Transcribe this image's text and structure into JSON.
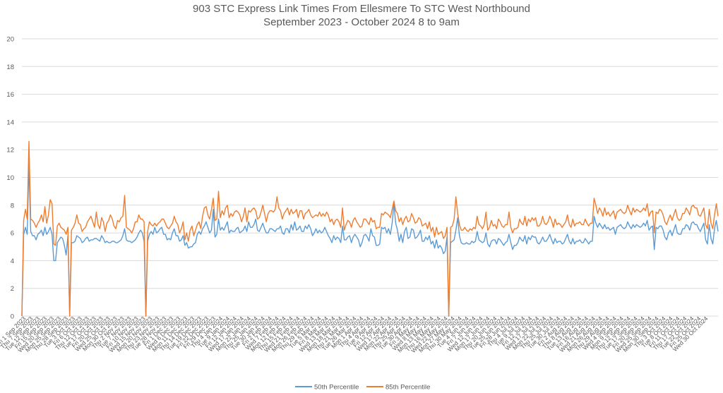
{
  "chart_data": {
    "type": "line",
    "title": "903 STC Express Link Times From Ellesmere To STC West Northbound",
    "subtitle": "September 2023 - October 2024 8 to 9am",
    "xlabel": "",
    "ylabel": "",
    "ylim": [
      0,
      20
    ],
    "y_ticks": [
      0,
      2,
      4,
      6,
      8,
      10,
      12,
      14,
      16,
      18,
      20
    ],
    "grid": true,
    "legend_position": "bottom",
    "x_tick_labels": [
      "Fri 1 Sep 2023",
      "Thu 7 Sep 2023",
      "Tue 12 Sep 2023",
      "Fri 15 Sep 2023",
      "Wed 20 Sep 2023",
      "Mon 25 Sep 2023",
      "Thu 28 Sep 2023",
      "Tue 3 Oct 2023",
      "Fri 6 Oct 2023",
      "Thu 12 Oct 2023",
      "Tue 17 Oct 2023",
      "Fri 20 Oct 2023",
      "Wed 25 Oct 2023",
      "Mon 30 Oct 2023",
      "Thu 2 Nov 2023",
      "Tue 7 Nov 2023",
      "Fri 10 Nov 2023",
      "Wed 15 Nov 2023",
      "Mon 20 Nov 2023",
      "Thu 23 Nov 2023",
      "Tue 28 Nov 2023",
      "Fri 1 Dec 2023",
      "Wed 6 Dec 2023",
      "Mon 11 Dec 2023",
      "Thu 14 Dec 2023",
      "Tue 19 Dec 2023",
      "Fri 22 Dec 2023",
      "Fri 29 Dec 2023",
      "Thu 4 Jan 2024",
      "Tue 9 Jan 2024",
      "Fri 12 Jan 2024",
      "Wed 17 Jan 2024",
      "Mon 22 Jan 2024",
      "Thu 25 Jan 2024",
      "Tue 30 Jan 2024",
      "Fri 2 Feb 2024",
      "Wed 7 Feb 2024",
      "Mon 12 Feb 2024",
      "Thu 15 Feb 2024",
      "Wed 21 Feb 2024",
      "Mon 26 Feb 2024",
      "Thu 29 Feb 2024",
      "Tue 5 Mar 2024",
      "Fri 8 Mar 2024",
      "Wed 13 Mar 2024",
      "Mon 18 Mar 2024",
      "Thu 21 Mar 2024",
      "Tue 26 Mar 2024",
      "Mon 1 Apr 2024",
      "Thu 4 Apr 2024",
      "Tue 9 Apr 2024",
      "Fri 12 Apr 2024",
      "Wed 17 Apr 2024",
      "Mon 22 Apr 2024",
      "Thu 25 Apr 2024",
      "Tue 30 Apr 2024",
      "Fri 3 May 2024",
      "Wed 8 May 2024",
      "Mon 13 May 2024",
      "Thu 16 May 2024",
      "Wed 22 May 2024",
      "Mon 27 May 2024",
      "Thu 30 May 2024",
      "Tue 4 Jun 2024",
      "Fri 7 Jun 2024",
      "Wed 12 Jun 2024",
      "Mon 17 Jun 2024",
      "Thu 20 Jun 2024",
      "Tue 25 Jun 2024",
      "Fri 28 Jun 2024",
      "Thu 4 Jul 2024",
      "Tue 9 Jul 2024",
      "Fri 12 Jul 2024",
      "Wed 17 Jul 2024",
      "Mon 22 Jul 2024",
      "Thu 25 Jul 2024",
      "Tue 30 Jul 2024",
      "Fri 2 Aug 2024",
      "Thu 8 Aug 2024",
      "Tue 13 Aug 2024",
      "Fri 16 Aug 2024",
      "Wed 21 Aug 2024",
      "Mon 26 Aug 2024",
      "Thu 29 Aug 2024",
      "Wed 4 Sep 2024",
      "Mon 9 Sep 2024",
      "Thu 12 Sep 2024",
      "Tue 17 Sep 2024",
      "Fri 20 Sep 2024",
      "Wed 25 Sep 2024",
      "Mon 30 Sep 2024",
      "Thu 3 Oct 2024",
      "Tue 8 Oct 2024",
      "Fri 11 Oct 2024",
      "Thu 17 Oct 2024",
      "Tue 22 Oct 2024",
      "Fri 25 Oct 2024",
      "Wed 30 Oct 2024"
    ],
    "series": [
      {
        "name": "50th Percentile",
        "color": "#5b9bd5",
        "values": [
          0,
          5.9,
          6.4,
          5.9,
          10.9,
          6.1,
          5.8,
          5.8,
          5.5,
          5.9,
          6.0,
          6.2,
          5.8,
          6.4,
          5.9,
          6.1,
          6.4,
          5.9,
          4.0,
          4.0,
          5.3,
          5.5,
          5.7,
          5.6,
          5.1,
          4.4,
          5.8,
          0,
          5.3,
          5.3,
          5.4,
          5.8,
          5.7,
          5.6,
          5.3,
          5.4,
          5.6,
          5.7,
          5.4,
          5.5,
          5.5,
          5.6,
          5.6,
          5.5,
          5.4,
          5.8,
          5.6,
          5.3,
          5.4,
          5.3,
          5.3,
          5.4,
          5.4,
          5.3,
          5.3,
          5.4,
          5.5,
          5.8,
          6.3,
          5.5,
          5.4,
          5.4,
          5.3,
          5.4,
          5.5,
          5.7,
          6.0,
          6.2,
          6.0,
          5.4,
          0,
          5.4,
          5.9,
          6.1,
          5.9,
          6.4,
          6.0,
          6.1,
          6.3,
          6.4,
          5.9,
          5.9,
          5.5,
          5.6,
          5.5,
          6.0,
          6.3,
          5.8,
          5.8,
          5.4,
          5.5,
          5.8,
          5.1,
          5.3,
          4.9,
          5.0,
          5.0,
          5.2,
          5.3,
          5.9,
          6.1,
          5.9,
          6.3,
          6.5,
          6.8,
          6.4,
          6.0,
          6.2,
          7.7,
          5.7,
          5.9,
          7.0,
          6.2,
          6.4,
          6.2,
          6.5,
          6.8,
          6.0,
          6.2,
          6.1,
          6.1,
          6.3,
          6.4,
          6.0,
          6.1,
          6.2,
          6.5,
          6.1,
          6.8,
          6.4,
          6.4,
          6.6,
          7.0,
          6.2,
          6.1,
          6.4,
          6.7,
          6.3,
          6.0,
          6.0,
          6.3,
          6.3,
          6.2,
          6.1,
          6.3,
          6.3,
          6.5,
          6.0,
          5.9,
          6.3,
          6.3,
          6.0,
          6.6,
          6.2,
          6.8,
          6.2,
          6.3,
          6.5,
          6.1,
          6.1,
          6.5,
          6.3,
          6.6,
          6.3,
          5.8,
          6.0,
          6.3,
          6.0,
          6.2,
          6.0,
          6.1,
          6.4,
          6.1,
          5.8,
          5.6,
          5.3,
          5.8,
          5.5,
          5.7,
          5.6,
          5.3,
          6.5,
          5.5,
          5.5,
          5.7,
          5.8,
          5.3,
          5.7,
          5.9,
          5.7,
          5.5,
          5.0,
          5.3,
          5.8,
          5.9,
          5.7,
          5.4,
          6.3,
          5.8,
          5.7,
          5.1,
          5.1,
          5.2,
          6.4,
          6.3,
          6.4,
          6.0,
          6.3,
          5.9,
          6.7,
          8.1,
          6.7,
          6.2,
          5.4,
          5.9,
          5.3,
          6.1,
          6.4,
          5.6,
          5.7,
          6.3,
          6.2,
          5.6,
          5.7,
          5.9,
          6.2,
          5.4,
          5.4,
          5.7,
          5.5,
          5.8,
          5.2,
          5.4,
          4.9,
          5.5,
          4.9,
          5.1,
          4.9,
          4.5,
          4.7,
          5.7,
          0,
          5.3,
          5.4,
          5.5,
          6.2,
          7.1,
          5.8,
          5.3,
          5.2,
          5.2,
          5.3,
          5.2,
          5.2,
          5.4,
          5.3,
          5.4,
          6.1,
          5.5,
          5.4,
          5.3,
          5.4,
          6.0,
          5.2,
          5.0,
          5.4,
          5.5,
          5.5,
          5.2,
          5.6,
          5.5,
          5.3,
          5.1,
          5.3,
          5.4,
          5.9,
          5.3,
          4.8,
          5.1,
          5.1,
          5.3,
          5.7,
          5.5,
          5.4,
          5.8,
          5.2,
          5.7,
          5.5,
          5.8,
          5.7,
          5.7,
          5.3,
          5.2,
          5.4,
          5.7,
          5.4,
          5.4,
          5.6,
          5.9,
          5.5,
          5.2,
          5.6,
          5.3,
          5.4,
          5.4,
          5.2,
          5.3,
          5.6,
          5.9,
          5.4,
          5.2,
          5.6,
          5.2,
          5.4,
          5.4,
          5.5,
          5.3,
          5.3,
          5.6,
          5.4,
          5.2,
          5.4,
          5.4,
          7.2,
          6.7,
          6.4,
          6.7,
          6.5,
          6.3,
          6.6,
          6.3,
          6.4,
          6.2,
          6.3,
          6.4,
          5.9,
          6.4,
          6.5,
          6.6,
          6.4,
          6.3,
          6.4,
          6.8,
          6.5,
          6.3,
          6.6,
          6.4,
          6.6,
          6.5,
          6.4,
          6.5,
          6.7,
          6.5,
          6.9,
          6.2,
          6.4,
          6.5,
          4.8,
          6.4,
          6.3,
          6.5,
          6.5,
          6.2,
          5.7,
          5.5,
          6.0,
          6.2,
          5.8,
          6.2,
          6.6,
          6.0,
          5.9,
          5.9,
          6.3,
          6.3,
          6.6,
          6.5,
          6.2,
          6.7,
          6.8,
          6.6,
          6.6,
          6.3,
          6.1,
          6.4,
          6.7,
          5.5,
          5.2,
          6.6,
          5.6,
          5.2,
          6.3,
          6.9,
          6.1
        ]
      },
      {
        "name": "85th Percentile",
        "color": "#ed7d31",
        "values": [
          0,
          6.9,
          7.7,
          7.0,
          12.6,
          7.0,
          6.9,
          6.7,
          6.4,
          6.7,
          6.9,
          7.3,
          6.8,
          7.9,
          6.7,
          7.3,
          8.4,
          8.1,
          5.2,
          5.1,
          6.5,
          6.7,
          6.4,
          6.3,
          6.2,
          5.9,
          6.4,
          0,
          6.2,
          6.4,
          6.7,
          7.3,
          6.7,
          6.6,
          6.1,
          6.3,
          6.4,
          6.8,
          7.0,
          7.2,
          6.8,
          6.4,
          7.5,
          6.6,
          6.3,
          7.1,
          6.8,
          6.1,
          6.7,
          6.9,
          7.3,
          7.0,
          6.5,
          6.3,
          6.9,
          6.8,
          7.1,
          7.2,
          8.7,
          6.4,
          6.3,
          6.2,
          6.0,
          6.3,
          6.8,
          6.8,
          7.3,
          7.0,
          7.0,
          6.8,
          0,
          6.1,
          6.8,
          6.6,
          6.5,
          6.7,
          6.5,
          6.7,
          6.8,
          7.0,
          7.0,
          6.7,
          6.4,
          6.3,
          6.5,
          6.7,
          7.2,
          6.8,
          6.6,
          6.0,
          6.3,
          6.8,
          5.5,
          6.0,
          5.4,
          6.2,
          6.5,
          5.8,
          6.2,
          6.6,
          6.8,
          6.3,
          7.2,
          7.8,
          7.9,
          7.3,
          7.0,
          7.7,
          8.5,
          6.9,
          7.0,
          9.0,
          7.1,
          7.6,
          7.3,
          7.8,
          8.0,
          7.1,
          7.4,
          7.2,
          7.5,
          7.6,
          7.5,
          7.3,
          6.8,
          7.2,
          7.8,
          6.8,
          7.6,
          7.5,
          7.7,
          7.8,
          7.6,
          7.0,
          7.1,
          7.5,
          8.0,
          7.4,
          6.8,
          7.4,
          7.6,
          7.6,
          7.5,
          7.7,
          8.6,
          7.8,
          7.6,
          7.0,
          7.4,
          7.6,
          7.8,
          7.3,
          7.7,
          7.4,
          7.5,
          7.7,
          7.1,
          7.6,
          7.6,
          7.0,
          7.4,
          7.5,
          7.7,
          7.3,
          7.1,
          7.2,
          7.3,
          7.2,
          7.5,
          7.2,
          7.4,
          7.2,
          7.5,
          7.3,
          6.8,
          7.0,
          6.6,
          6.9,
          7.0,
          6.8,
          6.4,
          7.8,
          6.2,
          6.6,
          6.9,
          6.8,
          6.4,
          6.9,
          7.1,
          6.8,
          6.6,
          6.4,
          6.5,
          7.0,
          7.0,
          6.8,
          6.6,
          7.1,
          6.8,
          6.9,
          6.3,
          6.4,
          6.4,
          7.4,
          7.3,
          7.5,
          7.4,
          7.3,
          7.1,
          7.7,
          8.3,
          7.6,
          7.4,
          6.8,
          7.1,
          6.6,
          7.0,
          7.2,
          6.8,
          6.9,
          7.4,
          7.1,
          6.7,
          6.8,
          7.1,
          7.0,
          6.5,
          6.6,
          6.7,
          6.3,
          6.8,
          6.1,
          6.4,
          5.7,
          6.4,
          5.9,
          6.0,
          6.1,
          5.6,
          5.8,
          6.4,
          0,
          6.4,
          6.5,
          7.0,
          8.6,
          7.4,
          6.6,
          6.2,
          6.2,
          6.4,
          6.2,
          6.1,
          6.3,
          6.2,
          6.4,
          6.3,
          7.2,
          6.6,
          6.5,
          6.3,
          6.6,
          7.5,
          6.2,
          6.4,
          6.9,
          6.5,
          6.6,
          6.3,
          7.0,
          6.8,
          6.5,
          6.4,
          6.6,
          6.6,
          7.5,
          6.4,
          6.0,
          6.3,
          6.3,
          6.4,
          7.0,
          6.7,
          6.6,
          7.2,
          6.5,
          7.0,
          6.8,
          7.1,
          6.9,
          7.1,
          6.5,
          6.5,
          6.7,
          7.2,
          6.7,
          6.6,
          6.8,
          7.2,
          6.9,
          6.4,
          7.0,
          6.6,
          6.7,
          6.6,
          6.4,
          6.6,
          6.8,
          7.3,
          6.6,
          6.4,
          7.0,
          6.5,
          6.7,
          6.7,
          6.8,
          6.6,
          6.6,
          7.0,
          6.7,
          6.5,
          6.7,
          6.7,
          8.5,
          8.0,
          7.4,
          7.8,
          7.6,
          7.2,
          7.8,
          7.3,
          7.5,
          7.2,
          7.4,
          7.6,
          7.0,
          7.5,
          7.6,
          7.7,
          7.5,
          7.4,
          7.5,
          8.0,
          7.6,
          7.3,
          7.8,
          7.5,
          7.7,
          7.6,
          7.5,
          7.6,
          7.8,
          7.6,
          8.1,
          7.2,
          7.5,
          7.6,
          6.0,
          7.5,
          7.4,
          7.7,
          7.6,
          7.3,
          6.8,
          6.6,
          7.0,
          7.3,
          6.9,
          7.3,
          7.7,
          7.1,
          6.9,
          7.0,
          7.4,
          7.4,
          7.8,
          7.6,
          7.3,
          7.9,
          8.0,
          7.8,
          7.8,
          7.3,
          7.2,
          7.5,
          7.8,
          6.6,
          6.3,
          7.7,
          6.7,
          6.3,
          7.3,
          8.1,
          7.2
        ]
      }
    ]
  }
}
